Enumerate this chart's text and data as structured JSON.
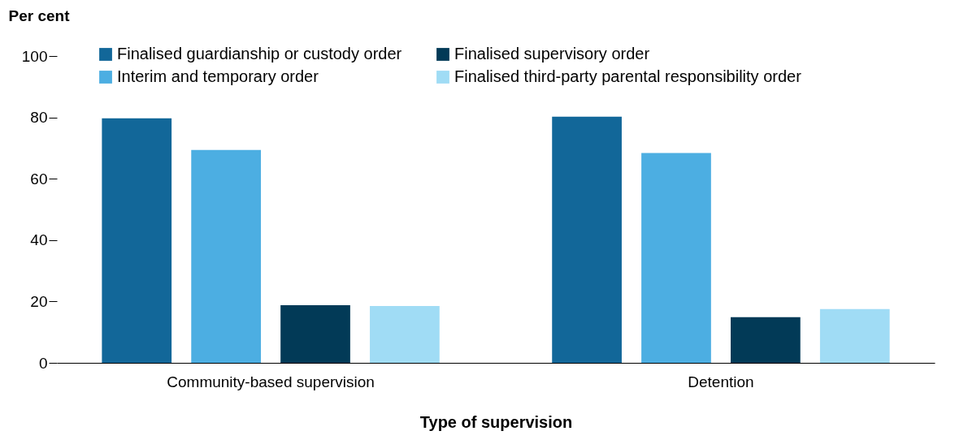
{
  "chart_data": {
    "type": "bar",
    "xlabel": "Type of supervision",
    "ylabel": "Per cent",
    "categories": [
      "Community-based supervision",
      "Detention"
    ],
    "series": [
      {
        "name": "Finalised guardianship or custody order",
        "color": "#126799",
        "values": [
          79.7,
          80.2
        ]
      },
      {
        "name": "Interim and temporary order",
        "color": "#4caee2",
        "values": [
          69.4,
          68.4
        ]
      },
      {
        "name": "Finalised supervisory order",
        "color": "#023a57",
        "values": [
          18.8,
          14.9
        ]
      },
      {
        "name": "Finalised third-party parental responsibility order",
        "color": "#a0dcf5",
        "values": [
          18.5,
          17.5
        ]
      }
    ],
    "ylim": [
      0,
      100
    ],
    "yticks": [
      0,
      20,
      40,
      60,
      80,
      100
    ],
    "grid": false,
    "legend": "top"
  }
}
